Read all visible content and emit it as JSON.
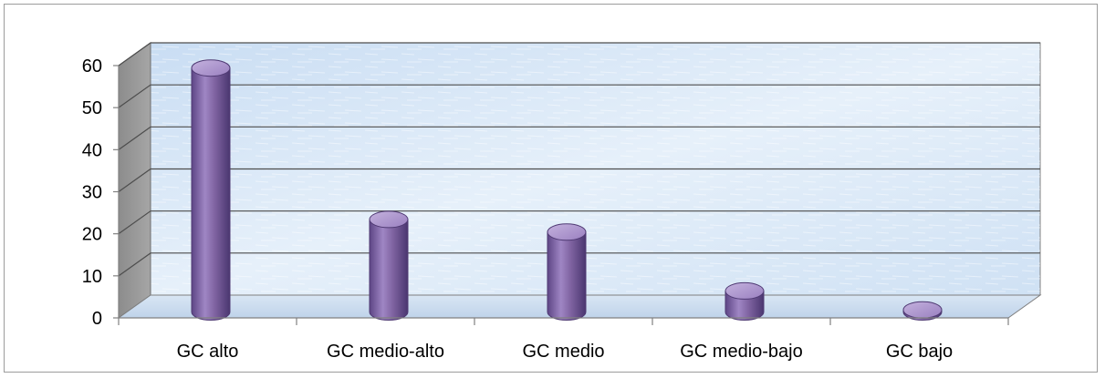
{
  "chart_data": {
    "type": "bar",
    "style": "3d-cylinder",
    "categories": [
      "GC alto",
      "GC medio-alto",
      "GC medio",
      "GC medio-bajo",
      "GC bajo"
    ],
    "values": [
      58,
      22,
      19,
      5,
      0.5
    ],
    "yticks": [
      0,
      10,
      20,
      30,
      40,
      50,
      60
    ],
    "ylim": [
      0,
      60
    ],
    "grid": true,
    "legend": "none",
    "colors": {
      "bar": "#8064a2",
      "bar_dark": "#4f3a73",
      "bar_light": "#b9a4d6",
      "wall": "#d7e6f6",
      "gridline": "#4d4d4d"
    }
  }
}
